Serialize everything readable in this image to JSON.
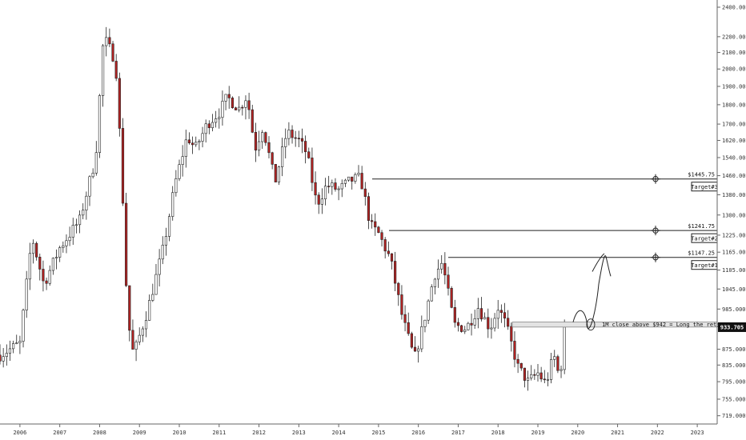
{
  "chart_data": {
    "type": "candlestick",
    "title": "",
    "xlabel": "",
    "ylabel": "",
    "interval": "1M",
    "ylim": [
      705,
      2440
    ],
    "xlim": [
      2005.5,
      2023.5
    ],
    "colors": {
      "up": "#ffffff",
      "down": "#b22222",
      "wick": "#222222",
      "price_tag": "#111111"
    },
    "y_ticks": [
      "2400.000",
      "2200.000",
      "2100.000",
      "2000.000",
      "1900.000",
      "1800.000",
      "1700.000",
      "1620.000",
      "1540.000",
      "1460.000",
      "1380.000",
      "1300.000",
      "1225.000",
      "1165.000",
      "1105.000",
      "1045.000",
      "985.000",
      "935.000",
      "875.000",
      "835.000",
      "795.000",
      "755.000",
      "719.000"
    ],
    "x_ticks": [
      "2006",
      "2007",
      "2008",
      "2009",
      "2010",
      "2011",
      "2012",
      "2013",
      "2014",
      "2015",
      "2016",
      "2017",
      "2018",
      "2019",
      "2020",
      "2021",
      "2022",
      "2023"
    ],
    "last_price": "933.705",
    "levels": [
      {
        "price": 1445.75,
        "label": "$1445.75",
        "tag": "Target#3"
      },
      {
        "price": 1241.75,
        "label": "$1241.75",
        "tag": "Target#2"
      },
      {
        "price": 1147.25,
        "label": "$1147.25",
        "tag": "Target#1"
      }
    ],
    "retest_zone": {
      "top": 948,
      "bottom": 934,
      "label": "1M close above $942 = Long the retest"
    },
    "anchors": [
      {
        "t": 2005.5,
        "c": 860
      },
      {
        "t": 2006.0,
        "c": 890
      },
      {
        "t": 2006.3,
        "c": 1220
      },
      {
        "t": 2006.6,
        "c": 1060
      },
      {
        "t": 2007.0,
        "c": 1180
      },
      {
        "t": 2007.5,
        "c": 1280
      },
      {
        "t": 2007.9,
        "c": 1540
      },
      {
        "t": 2008.1,
        "c": 2200
      },
      {
        "t": 2008.4,
        "c": 2050
      },
      {
        "t": 2008.55,
        "c": 1500
      },
      {
        "t": 2008.7,
        "c": 960
      },
      {
        "t": 2008.85,
        "c": 860
      },
      {
        "t": 2009.2,
        "c": 980
      },
      {
        "t": 2009.6,
        "c": 1180
      },
      {
        "t": 2009.9,
        "c": 1430
      },
      {
        "t": 2010.2,
        "c": 1640
      },
      {
        "t": 2010.4,
        "c": 1580
      },
      {
        "t": 2010.7,
        "c": 1700
      },
      {
        "t": 2011.0,
        "c": 1760
      },
      {
        "t": 2011.2,
        "c": 1840
      },
      {
        "t": 2011.5,
        "c": 1780
      },
      {
        "t": 2011.7,
        "c": 1850
      },
      {
        "t": 2011.9,
        "c": 1580
      },
      {
        "t": 2012.1,
        "c": 1690
      },
      {
        "t": 2012.4,
        "c": 1430
      },
      {
        "t": 2012.7,
        "c": 1660
      },
      {
        "t": 2013.0,
        "c": 1620
      },
      {
        "t": 2013.2,
        "c": 1560
      },
      {
        "t": 2013.45,
        "c": 1340
      },
      {
        "t": 2013.7,
        "c": 1420
      },
      {
        "t": 2014.0,
        "c": 1400
      },
      {
        "t": 2014.3,
        "c": 1440
      },
      {
        "t": 2014.55,
        "c": 1450
      },
      {
        "t": 2014.8,
        "c": 1260
      },
      {
        "t": 2015.0,
        "c": 1230
      },
      {
        "t": 2015.3,
        "c": 1140
      },
      {
        "t": 2015.6,
        "c": 960
      },
      {
        "t": 2015.9,
        "c": 850
      },
      {
        "t": 2016.1,
        "c": 930
      },
      {
        "t": 2016.4,
        "c": 1090
      },
      {
        "t": 2016.6,
        "c": 1130
      },
      {
        "t": 2016.9,
        "c": 940
      },
      {
        "t": 2017.2,
        "c": 930
      },
      {
        "t": 2017.5,
        "c": 990
      },
      {
        "t": 2017.8,
        "c": 930
      },
      {
        "t": 2018.0,
        "c": 990
      },
      {
        "t": 2018.2,
        "c": 940
      },
      {
        "t": 2018.5,
        "c": 830
      },
      {
        "t": 2018.75,
        "c": 795
      },
      {
        "t": 2019.0,
        "c": 815
      },
      {
        "t": 2019.2,
        "c": 790
      },
      {
        "t": 2019.4,
        "c": 860
      },
      {
        "t": 2019.55,
        "c": 800
      },
      {
        "t": 2019.67,
        "c": 934
      }
    ]
  }
}
